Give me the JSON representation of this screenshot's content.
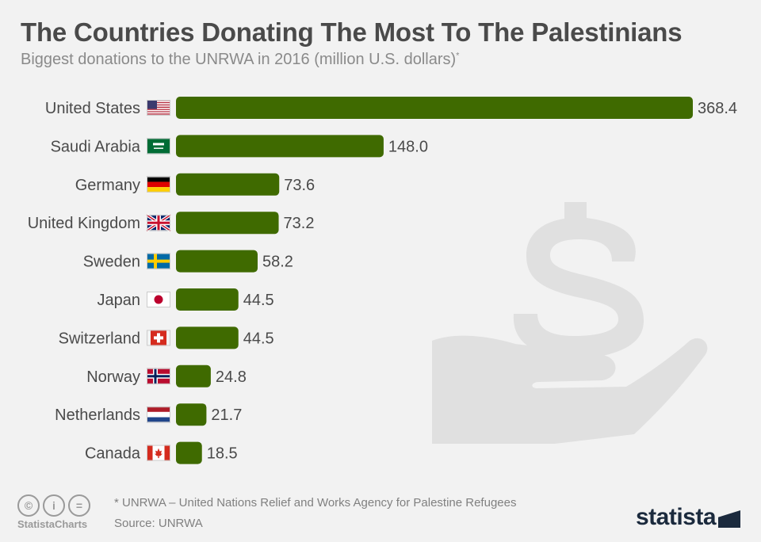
{
  "header": {
    "title": "The Countries Donating The Most To The Palestinians",
    "subtitle": "Biggest donations to the UNRWA in 2016 (million U.S. dollars)",
    "subtitle_marker": "*"
  },
  "colors": {
    "bar": "#3f6a00",
    "background": "#f2f2f2",
    "label": "#4a4a4a",
    "decoration": "#e0e0e0"
  },
  "icons": {
    "background": "hand-dollar-icon",
    "footer": [
      "copyright-icon",
      "info-icon",
      "equals-icon"
    ],
    "flags": [
      "us-flag-icon",
      "saudi-flag-icon",
      "germany-flag-icon",
      "uk-flag-icon",
      "sweden-flag-icon",
      "japan-flag-icon",
      "switzerland-flag-icon",
      "norway-flag-icon",
      "netherlands-flag-icon",
      "canada-flag-icon"
    ]
  },
  "chart_data": {
    "type": "bar",
    "orientation": "horizontal",
    "categories": [
      "United States",
      "Saudi Arabia",
      "Germany",
      "United Kingdom",
      "Sweden",
      "Japan",
      "Switzerland",
      "Norway",
      "Netherlands",
      "Canada"
    ],
    "values": [
      368.4,
      148.0,
      73.6,
      73.2,
      58.2,
      44.5,
      44.5,
      24.8,
      21.7,
      18.5
    ],
    "value_labels": [
      "368.4",
      "148.0",
      "73.6",
      "73.2",
      "58.2",
      "44.5",
      "44.5",
      "24.8",
      "21.7",
      "18.5"
    ],
    "xlim": [
      0,
      368.4
    ],
    "grid": false,
    "legend": "none"
  },
  "footer": {
    "note": "* UNRWA – United Nations Relief and Works Agency for Palestine Refugees",
    "source": "Source: UNRWA",
    "statista_charts": "StatistaCharts",
    "brand": "statista",
    "icon_labels": [
      "©",
      "i",
      "="
    ]
  }
}
